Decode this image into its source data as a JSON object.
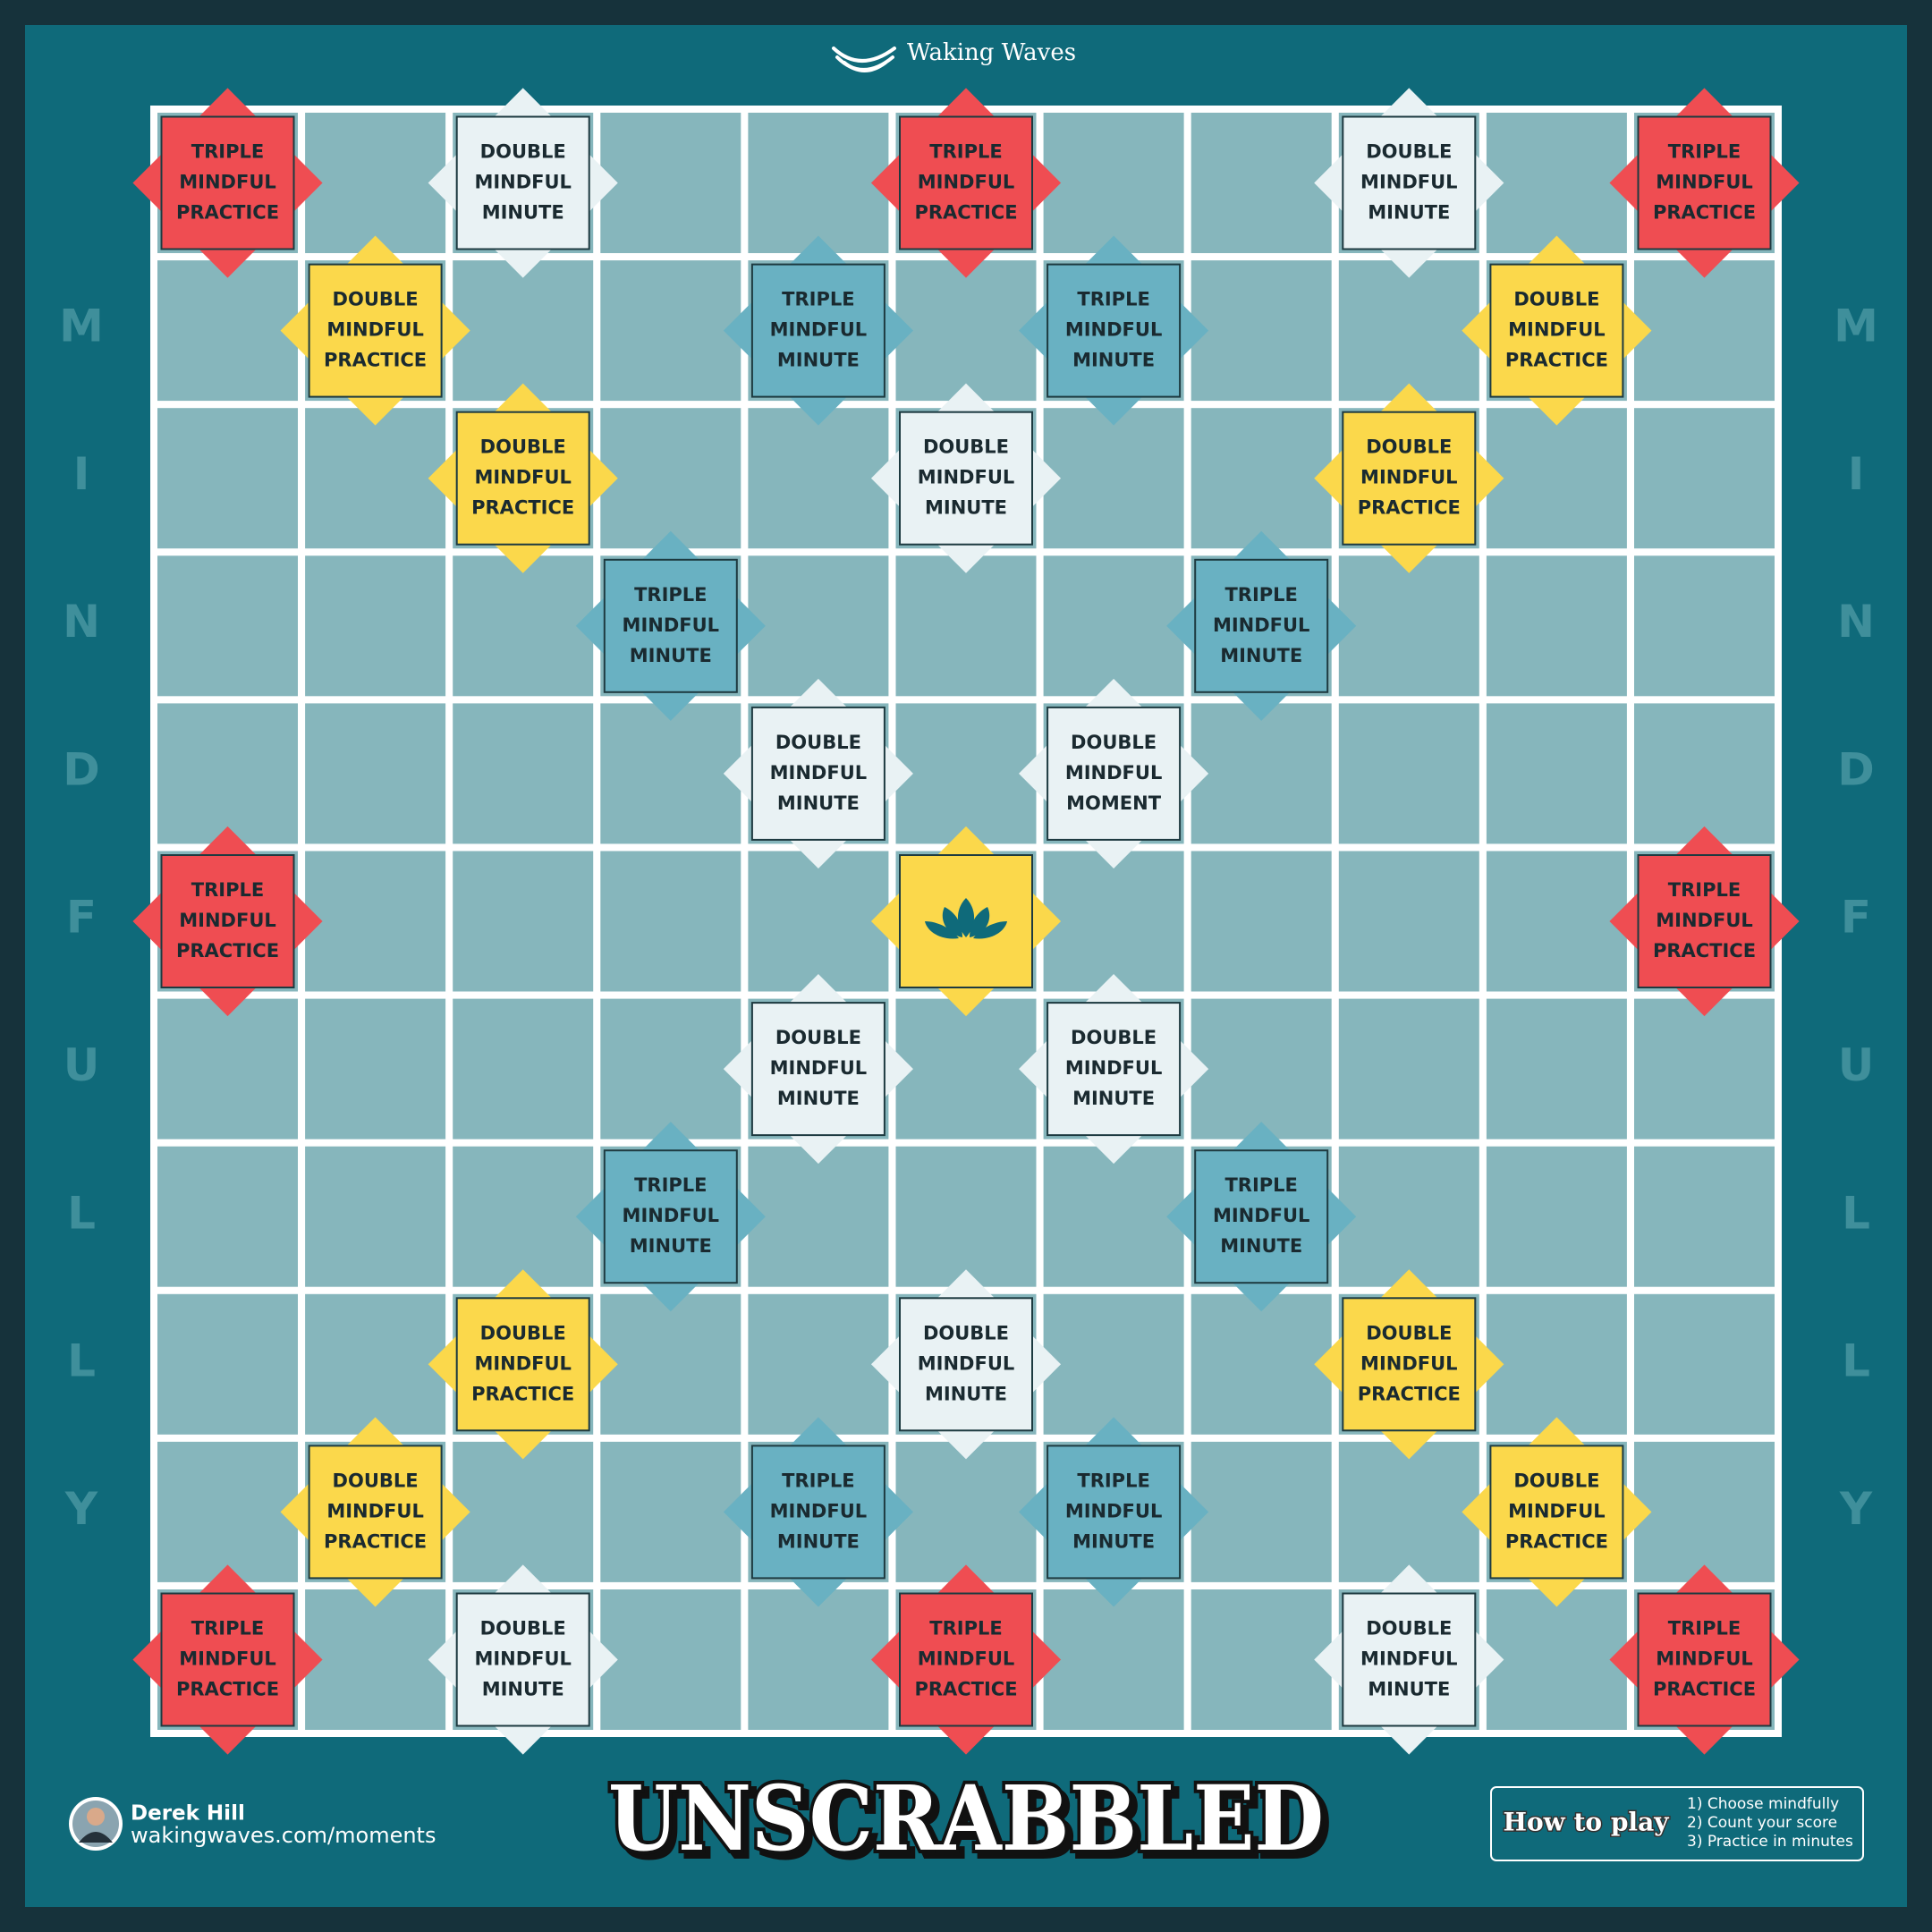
{
  "brand": "Waking Waves",
  "side_letters": [
    "M",
    "I",
    "N",
    "D",
    "F",
    "U",
    "L",
    "L",
    "Y"
  ],
  "board": {
    "rows": [
      [
        {
          "color": "#ef4d52",
          "lines": [
            "TRIPLE",
            "MINDFUL",
            "PRACTICE"
          ]
        },
        null,
        {
          "color": "#e9f2f4",
          "lines": [
            "DOUBLE",
            "MINDFUL",
            "MINUTE"
          ]
        },
        null,
        null,
        {
          "color": "#ef4d52",
          "lines": [
            "TRIPLE",
            "MINDFUL",
            "PRACTICE"
          ]
        },
        null,
        null,
        {
          "color": "#e9f2f4",
          "lines": [
            "DOUBLE",
            "MINDFUL",
            "MINUTE"
          ]
        },
        null,
        {
          "color": "#ef4d52",
          "lines": [
            "TRIPLE",
            "MINDFUL",
            "PRACTICE"
          ]
        }
      ],
      [
        null,
        {
          "color": "#fbd84b",
          "lines": [
            "DOUBLE",
            "MINDFUL",
            "PRACTICE"
          ]
        },
        null,
        null,
        {
          "color": "#69b1c2",
          "lines": [
            "TRIPLE",
            "MINDFUL",
            "MINUTE"
          ]
        },
        null,
        {
          "color": "#69b1c2",
          "lines": [
            "TRIPLE",
            "MINDFUL",
            "MINUTE"
          ]
        },
        null,
        null,
        {
          "color": "#fbd84b",
          "lines": [
            "DOUBLE",
            "MINDFUL",
            "PRACTICE"
          ]
        },
        null
      ],
      [
        null,
        null,
        {
          "color": "#fbd84b",
          "lines": [
            "DOUBLE",
            "MINDFUL",
            "PRACTICE"
          ]
        },
        null,
        null,
        {
          "color": "#e9f2f4",
          "lines": [
            "DOUBLE",
            "MINDFUL",
            "MINUTE"
          ]
        },
        null,
        null,
        {
          "color": "#fbd84b",
          "lines": [
            "DOUBLE",
            "MINDFUL",
            "PRACTICE"
          ]
        },
        null,
        null
      ],
      [
        null,
        null,
        null,
        {
          "color": "#69b1c2",
          "lines": [
            "TRIPLE",
            "MINDFUL",
            "MINUTE"
          ]
        },
        null,
        null,
        null,
        {
          "color": "#69b1c2",
          "lines": [
            "TRIPLE",
            "MINDFUL",
            "MINUTE"
          ]
        },
        null,
        null,
        null
      ],
      [
        null,
        null,
        null,
        null,
        {
          "color": "#e9f2f4",
          "lines": [
            "DOUBLE",
            "MINDFUL",
            "MINUTE"
          ]
        },
        null,
        {
          "color": "#e9f2f4",
          "lines": [
            "DOUBLE",
            "MINDFUL",
            "MOMENT"
          ]
        },
        null,
        null,
        null,
        null
      ],
      [
        {
          "color": "#ef4d52",
          "lines": [
            "TRIPLE",
            "MINDFUL",
            "PRACTICE"
          ]
        },
        null,
        null,
        null,
        null,
        {
          "color": "#fbd84b"
        },
        null,
        null,
        null,
        null,
        {
          "color": "#ef4d52",
          "lines": [
            "TRIPLE",
            "MINDFUL",
            "PRACTICE"
          ]
        }
      ],
      [
        null,
        null,
        null,
        null,
        {
          "color": "#e9f2f4",
          "lines": [
            "DOUBLE",
            "MINDFUL",
            "MINUTE"
          ]
        },
        null,
        {
          "color": "#e9f2f4",
          "lines": [
            "DOUBLE",
            "MINDFUL",
            "MINUTE"
          ]
        },
        null,
        null,
        null,
        null
      ],
      [
        null,
        null,
        null,
        {
          "color": "#69b1c2",
          "lines": [
            "TRIPLE",
            "MINDFUL",
            "MINUTE"
          ]
        },
        null,
        null,
        null,
        {
          "color": "#69b1c2",
          "lines": [
            "TRIPLE",
            "MINDFUL",
            "MINUTE"
          ]
        },
        null,
        null,
        null
      ],
      [
        null,
        null,
        {
          "color": "#fbd84b",
          "lines": [
            "DOUBLE",
            "MINDFUL",
            "PRACTICE"
          ]
        },
        null,
        null,
        {
          "color": "#e9f2f4",
          "lines": [
            "DOUBLE",
            "MINDFUL",
            "MINUTE"
          ]
        },
        null,
        null,
        {
          "color": "#fbd84b",
          "lines": [
            "DOUBLE",
            "MINDFUL",
            "PRACTICE"
          ]
        },
        null,
        null
      ],
      [
        null,
        {
          "color": "#fbd84b",
          "lines": [
            "DOUBLE",
            "MINDFUL",
            "PRACTICE"
          ]
        },
        null,
        null,
        {
          "color": "#69b1c2",
          "lines": [
            "TRIPLE",
            "MINDFUL",
            "MINUTE"
          ]
        },
        null,
        {
          "color": "#69b1c2",
          "lines": [
            "TRIPLE",
            "MINDFUL",
            "MINUTE"
          ]
        },
        null,
        null,
        {
          "color": "#fbd84b",
          "lines": [
            "DOUBLE",
            "MINDFUL",
            "PRACTICE"
          ]
        },
        null
      ],
      [
        {
          "color": "#ef4d52",
          "lines": [
            "TRIPLE",
            "MINDFUL",
            "PRACTICE"
          ]
        },
        null,
        {
          "color": "#e9f2f4",
          "lines": [
            "DOUBLE",
            "MINDFUL",
            "MINUTE"
          ]
        },
        null,
        null,
        {
          "color": "#ef4d52",
          "lines": [
            "TRIPLE",
            "MINDFUL",
            "PRACTICE"
          ]
        },
        null,
        null,
        {
          "color": "#e9f2f4",
          "lines": [
            "DOUBLE",
            "MINDFUL",
            "MINUTE"
          ]
        },
        null,
        {
          "color": "#ef4d52",
          "lines": [
            "TRIPLE",
            "MINDFUL",
            "PRACTICE"
          ]
        }
      ]
    ]
  },
  "author": {
    "name": "Derek Hill",
    "url": "wakingwaves.com/moments"
  },
  "title": "UNSCRABBLED",
  "how_to_play": {
    "title": "How to play",
    "steps": [
      "1) Choose mindfully",
      "2) Count your score",
      "3) Practice in minutes"
    ]
  }
}
